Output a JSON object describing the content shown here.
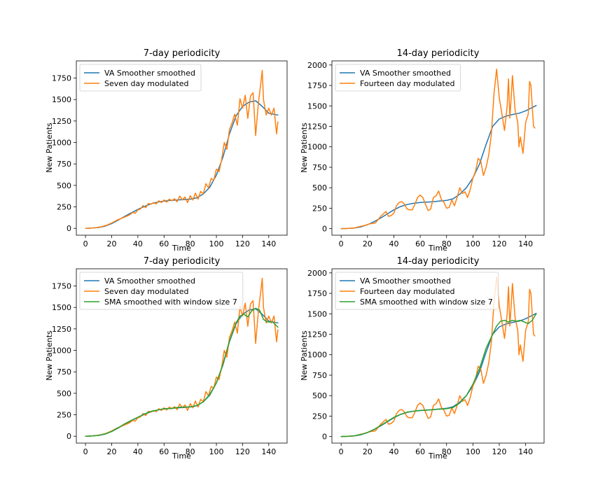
{
  "figure": {
    "xlabel": "Time",
    "ylabel": "New Patients"
  },
  "colors": {
    "va": "#1f77b4",
    "modulated": "#ff7f0e",
    "sma": "#2ca02c"
  },
  "chart_data": [
    {
      "type": "line",
      "title": "7-day periodicity",
      "xlabel": "Time",
      "ylabel": "New Patients",
      "xlim": [
        -7,
        154
      ],
      "ylim": [
        -80,
        1950
      ],
      "xticks": [
        0,
        20,
        40,
        60,
        80,
        100,
        120,
        140
      ],
      "yticks": [
        0,
        250,
        500,
        750,
        1000,
        1250,
        1500,
        1750
      ],
      "legend": "upper left",
      "grid": false,
      "series": [
        {
          "name": " VA Smoother smoothed",
          "color": "#1f77b4",
          "kind": "va7"
        },
        {
          "name": "Seven day modulated",
          "color": "#ff7f0e",
          "kind": "mod7"
        }
      ]
    },
    {
      "type": "line",
      "title": "14-day periodicity",
      "xlabel": "Time",
      "ylabel": "New Patients",
      "xlim": [
        -7,
        154
      ],
      "ylim": [
        -80,
        2050
      ],
      "xticks": [
        0,
        20,
        40,
        60,
        80,
        100,
        120,
        140
      ],
      "yticks": [
        0,
        250,
        500,
        750,
        1000,
        1250,
        1500,
        1750,
        2000
      ],
      "legend": "upper left",
      "grid": false,
      "series": [
        {
          "name": " VA Smoother smoothed",
          "color": "#1f77b4",
          "kind": "va14"
        },
        {
          "name": "Fourteen day modulated",
          "color": "#ff7f0e",
          "kind": "mod14"
        }
      ]
    },
    {
      "type": "line",
      "title": "7-day periodicity",
      "xlabel": "Time",
      "ylabel": "New Patients",
      "xlim": [
        -7,
        154
      ],
      "ylim": [
        -80,
        1950
      ],
      "xticks": [
        0,
        20,
        40,
        60,
        80,
        100,
        120,
        140
      ],
      "yticks": [
        0,
        250,
        500,
        750,
        1000,
        1250,
        1500,
        1750
      ],
      "legend": "upper left",
      "grid": false,
      "series": [
        {
          "name": " VA Smoother smoothed",
          "color": "#1f77b4",
          "kind": "va7"
        },
        {
          "name": "Seven day modulated",
          "color": "#ff7f0e",
          "kind": "mod7"
        },
        {
          "name": "SMA smoothed with window size 7",
          "color": "#2ca02c",
          "kind": "sma7"
        }
      ]
    },
    {
      "type": "line",
      "title": "14-day periodicity",
      "xlabel": "Time",
      "ylabel": "New Patients",
      "xlim": [
        -7,
        154
      ],
      "ylim": [
        -80,
        2050
      ],
      "xticks": [
        0,
        20,
        40,
        60,
        80,
        100,
        120,
        140
      ],
      "yticks": [
        0,
        250,
        500,
        750,
        1000,
        1250,
        1500,
        1750,
        2000
      ],
      "legend": "upper left",
      "grid": false,
      "series": [
        {
          "name": " VA Smoother smoothed",
          "color": "#1f77b4",
          "kind": "va14"
        },
        {
          "name": "Fourteen day modulated",
          "color": "#ff7f0e",
          "kind": "mod14"
        },
        {
          "name": "SMA smoothed with window size 7",
          "color": "#2ca02c",
          "kind": "sma14"
        }
      ]
    }
  ],
  "series_data": {
    "va7": {
      "x": [
        0,
        5,
        10,
        15,
        20,
        25,
        30,
        35,
        40,
        45,
        50,
        55,
        60,
        65,
        70,
        75,
        80,
        85,
        90,
        95,
        100,
        105,
        110,
        115,
        120,
        125,
        130,
        135,
        140,
        147
      ],
      "y": [
        0,
        3,
        10,
        25,
        55,
        95,
        140,
        180,
        220,
        255,
        285,
        305,
        318,
        325,
        330,
        335,
        340,
        355,
        400,
        480,
        620,
        830,
        1100,
        1310,
        1420,
        1470,
        1485,
        1420,
        1340,
        1320
      ]
    },
    "mod7": {
      "x": [
        0,
        4,
        8,
        12,
        16,
        20,
        24,
        28,
        32,
        34,
        36,
        38,
        40,
        42,
        44,
        46,
        48,
        50,
        52,
        54,
        56,
        58,
        60,
        62,
        64,
        66,
        68,
        70,
        72,
        74,
        76,
        78,
        80,
        82,
        84,
        86,
        88,
        90,
        92,
        94,
        96,
        98,
        100,
        102,
        104,
        106,
        108,
        110,
        112,
        114,
        116,
        118,
        120,
        122,
        124,
        126,
        128,
        130,
        132,
        134,
        135,
        136,
        138,
        140,
        142,
        144,
        146,
        147
      ],
      "y": [
        0,
        2,
        8,
        18,
        35,
        62,
        95,
        120,
        145,
        160,
        185,
        175,
        215,
        225,
        265,
        240,
        290,
        280,
        300,
        285,
        320,
        300,
        330,
        305,
        340,
        320,
        345,
        310,
        375,
        330,
        365,
        300,
        380,
        330,
        410,
        340,
        430,
        400,
        520,
        470,
        580,
        560,
        690,
        660,
        800,
        1000,
        920,
        1150,
        1230,
        1330,
        1200,
        1510,
        1400,
        1550,
        1280,
        1540,
        1580,
        1080,
        1450,
        1700,
        1840,
        1500,
        1320,
        1400,
        1320,
        1400,
        1100,
        1240
      ]
    },
    "sma7": {
      "x": [
        0,
        5,
        10,
        15,
        20,
        25,
        30,
        35,
        40,
        45,
        50,
        55,
        60,
        65,
        70,
        75,
        80,
        85,
        90,
        95,
        100,
        105,
        110,
        115,
        118,
        121,
        124,
        127,
        130,
        133,
        136,
        139,
        143,
        147
      ],
      "y": [
        0,
        3,
        10,
        26,
        56,
        98,
        145,
        185,
        222,
        258,
        290,
        305,
        322,
        322,
        335,
        340,
        342,
        358,
        400,
        490,
        620,
        840,
        1110,
        1320,
        1400,
        1420,
        1390,
        1460,
        1490,
        1470,
        1360,
        1330,
        1330,
        1270
      ]
    },
    "va14": {
      "x": [
        0,
        5,
        10,
        15,
        20,
        25,
        30,
        35,
        40,
        45,
        50,
        55,
        60,
        65,
        70,
        75,
        80,
        85,
        90,
        95,
        100,
        105,
        110,
        115,
        120,
        125,
        130,
        135,
        140,
        145,
        148
      ],
      "y": [
        0,
        2,
        8,
        22,
        48,
        85,
        130,
        180,
        230,
        270,
        295,
        310,
        320,
        325,
        330,
        338,
        345,
        365,
        420,
        500,
        620,
        790,
        1030,
        1250,
        1340,
        1375,
        1395,
        1410,
        1440,
        1480,
        1505
      ]
    },
    "mod14": {
      "x": [
        0,
        5,
        10,
        14,
        18,
        22,
        26,
        28,
        30,
        32,
        34,
        36,
        38,
        40,
        42,
        44,
        46,
        48,
        50,
        52,
        54,
        56,
        58,
        60,
        62,
        64,
        66,
        68,
        70,
        72,
        74,
        76,
        78,
        80,
        82,
        84,
        86,
        88,
        90,
        92,
        94,
        96,
        98,
        100,
        102,
        104,
        106,
        108,
        110,
        112,
        114,
        115,
        116,
        118,
        120,
        122,
        124,
        126,
        127,
        128,
        129,
        130,
        132,
        134,
        135,
        136,
        138,
        140,
        142,
        143,
        144,
        146,
        147
      ],
      "y": [
        0,
        2,
        8,
        25,
        40,
        60,
        70,
        110,
        150,
        180,
        210,
        150,
        160,
        190,
        280,
        320,
        330,
        300,
        240,
        230,
        230,
        300,
        380,
        410,
        380,
        300,
        220,
        240,
        380,
        400,
        460,
        360,
        320,
        250,
        260,
        350,
        280,
        380,
        500,
        430,
        450,
        380,
        480,
        620,
        700,
        860,
        820,
        650,
        750,
        900,
        1150,
        1400,
        1650,
        1950,
        1600,
        1400,
        1200,
        1500,
        1830,
        1350,
        1600,
        1870,
        1450,
        1300,
        1000,
        1120,
        920,
        1300,
        1400,
        1800,
        1750,
        1250,
        1230
      ]
    },
    "sma14": {
      "x": [
        0,
        5,
        10,
        15,
        20,
        25,
        30,
        35,
        40,
        45,
        50,
        55,
        60,
        65,
        70,
        75,
        80,
        85,
        90,
        95,
        100,
        105,
        110,
        115,
        118,
        121,
        124,
        127,
        130,
        133,
        136,
        139,
        142,
        145,
        148
      ],
      "y": [
        0,
        3,
        10,
        24,
        50,
        88,
        135,
        185,
        235,
        272,
        298,
        310,
        318,
        322,
        330,
        335,
        340,
        355,
        410,
        500,
        640,
        830,
        1080,
        1250,
        1350,
        1410,
        1420,
        1400,
        1420,
        1410,
        1420,
        1400,
        1380,
        1420,
        1500
      ]
    }
  }
}
